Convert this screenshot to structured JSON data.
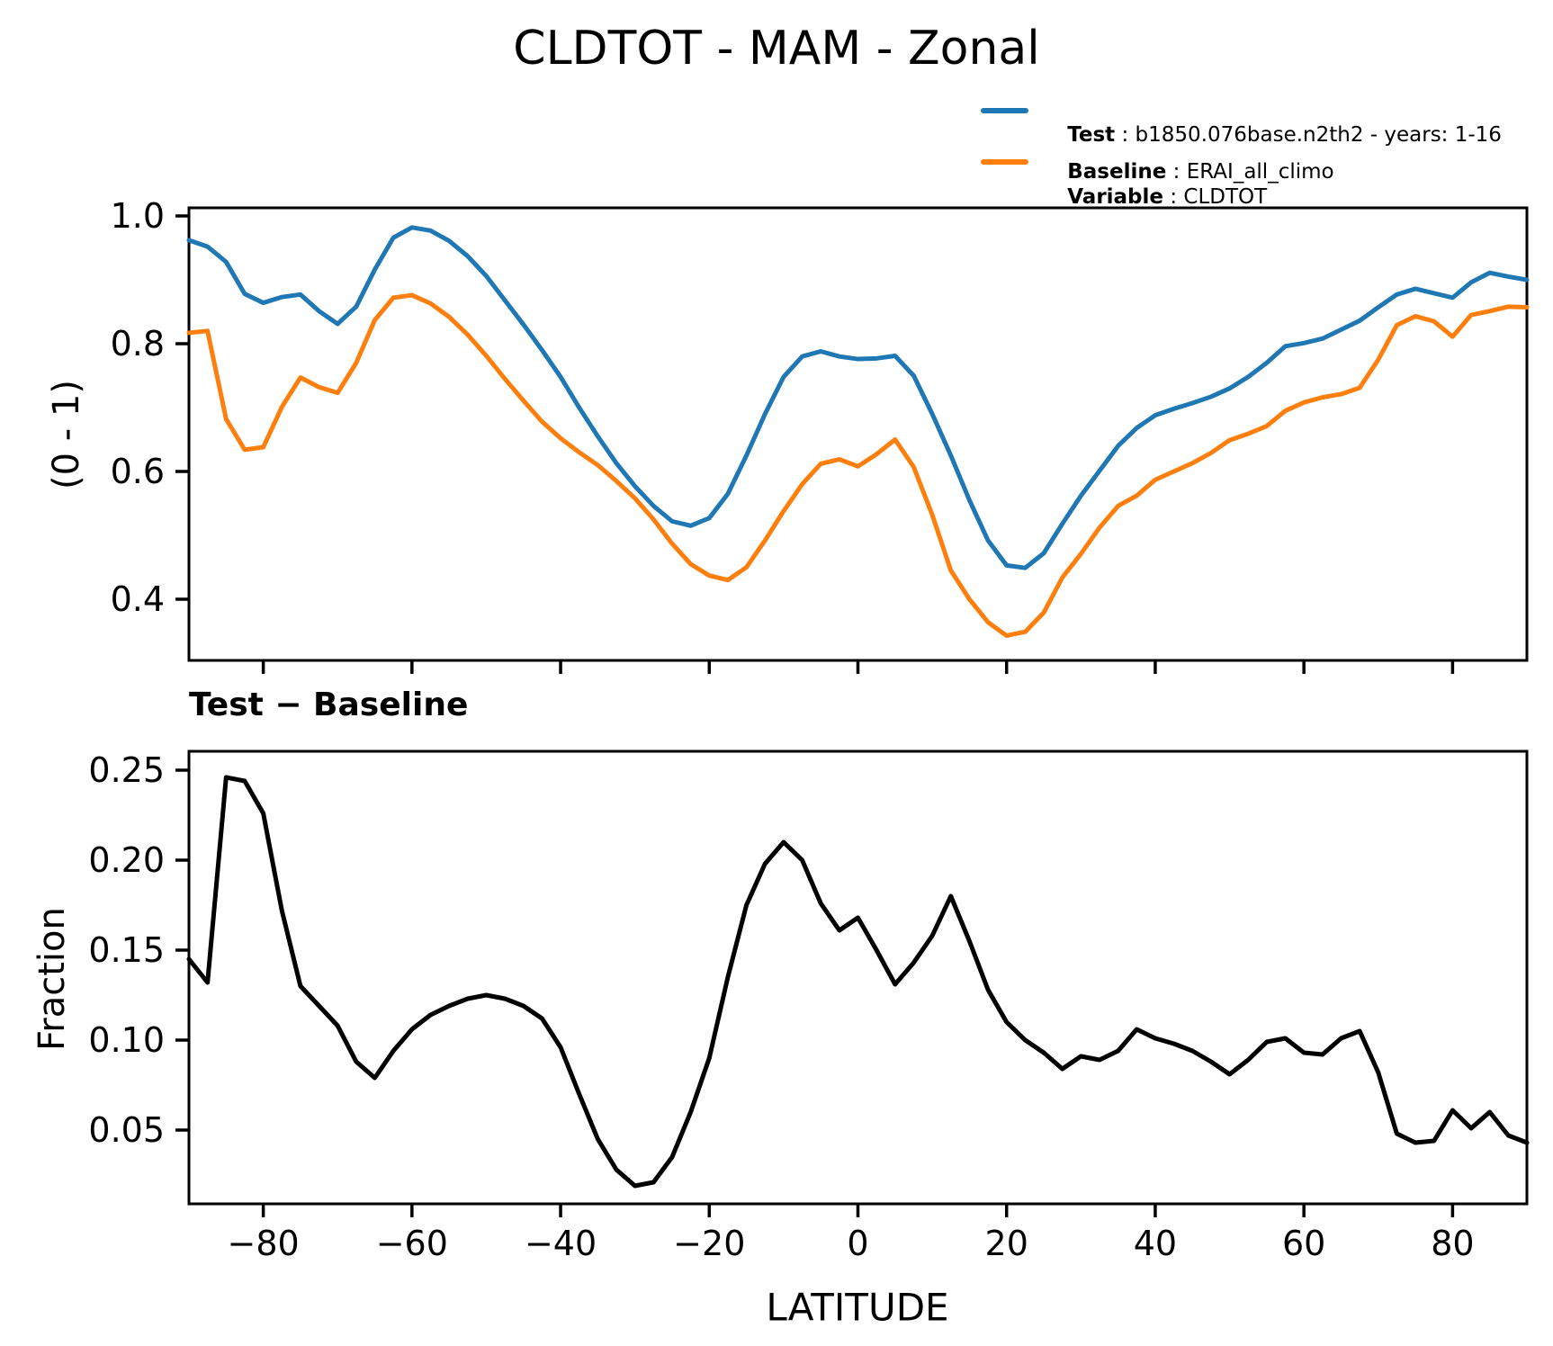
{
  "title": "CLDTOT - MAM - Zonal",
  "legend": {
    "separator": " : ",
    "test_label": "Test",
    "test_value": "b1850.076base.n2th2 - years: 1-16",
    "baseline_label": "Baseline",
    "baseline_value": "ERAI_all_climo",
    "variable_label": "Variable",
    "variable_value": "CLDTOT"
  },
  "colors": {
    "test": "#1f77b4",
    "baseline": "#ff7f0e",
    "diff": "#000000"
  },
  "chart_data": [
    {
      "type": "line",
      "title": "",
      "xlabel": "",
      "ylabel": "(0 - 1)",
      "xlim": [
        -90,
        90
      ],
      "ylim": [
        0.3,
        1.01
      ],
      "grid": false,
      "legend_position": "upper right (figure)",
      "xticks": [
        -80,
        -60,
        -40,
        -20,
        0,
        20,
        40,
        60,
        80
      ],
      "xtick_labels": [
        "−80",
        "−60",
        "−40",
        "−20",
        "0",
        "20",
        "40",
        "60",
        "80"
      ],
      "yticks": [
        1.0,
        0.8,
        0.6,
        0.4
      ],
      "ytick_labels": [
        "1.0",
        "0.8",
        "0.6",
        "0.4"
      ],
      "x": [
        -90,
        -87.5,
        -85,
        -82.5,
        -80,
        -77.5,
        -75,
        -72.5,
        -70,
        -67.5,
        -65,
        -62.5,
        -60,
        -57.5,
        -55,
        -52.5,
        -50,
        -47.5,
        -45,
        -42.5,
        -40,
        -37.5,
        -35,
        -32.5,
        -30,
        -27.5,
        -25,
        -22.5,
        -20,
        -17.5,
        -15,
        -12.5,
        -10,
        -7.5,
        -5,
        -2.5,
        0,
        2.5,
        5,
        7.5,
        10,
        12.5,
        15,
        17.5,
        20,
        22.5,
        25,
        27.5,
        30,
        32.5,
        35,
        37.5,
        40,
        42.5,
        45,
        47.5,
        50,
        52.5,
        55,
        57.5,
        60,
        62.5,
        65,
        67.5,
        70,
        72.5,
        75,
        77.5,
        80,
        82.5,
        85,
        87.5,
        90
      ],
      "series": [
        {
          "name": "Test: b1850.076base.n2th2 - years: 1-16",
          "color": "#1f77b4",
          "values": [
            0.962,
            0.952,
            0.928,
            0.878,
            0.864,
            0.873,
            0.877,
            0.851,
            0.831,
            0.858,
            0.916,
            0.966,
            0.982,
            0.977,
            0.961,
            0.937,
            0.906,
            0.868,
            0.83,
            0.79,
            0.748,
            0.7,
            0.655,
            0.613,
            0.577,
            0.546,
            0.522,
            0.515,
            0.527,
            0.565,
            0.625,
            0.69,
            0.748,
            0.78,
            0.788,
            0.78,
            0.776,
            0.777,
            0.781,
            0.75,
            0.69,
            0.625,
            0.555,
            0.492,
            0.453,
            0.449,
            0.472,
            0.518,
            0.562,
            0.601,
            0.64,
            0.668,
            0.688,
            0.698,
            0.707,
            0.717,
            0.73,
            0.748,
            0.77,
            0.796,
            0.801,
            0.808,
            0.822,
            0.836,
            0.857,
            0.877,
            0.886,
            0.879,
            0.872,
            0.896,
            0.911,
            0.905,
            0.9
          ]
        },
        {
          "name": "Baseline: ERAI_all_climo",
          "color": "#ff7f0e",
          "values": [
            0.817,
            0.82,
            0.682,
            0.634,
            0.638,
            0.701,
            0.747,
            0.732,
            0.723,
            0.77,
            0.837,
            0.872,
            0.876,
            0.863,
            0.842,
            0.814,
            0.781,
            0.745,
            0.711,
            0.678,
            0.652,
            0.63,
            0.61,
            0.585,
            0.558,
            0.525,
            0.487,
            0.455,
            0.437,
            0.43,
            0.45,
            0.492,
            0.538,
            0.58,
            0.612,
            0.619,
            0.608,
            0.627,
            0.65,
            0.607,
            0.532,
            0.445,
            0.4,
            0.364,
            0.343,
            0.349,
            0.379,
            0.434,
            0.471,
            0.512,
            0.546,
            0.562,
            0.587,
            0.6,
            0.613,
            0.629,
            0.649,
            0.659,
            0.671,
            0.695,
            0.708,
            0.716,
            0.721,
            0.731,
            0.775,
            0.829,
            0.843,
            0.835,
            0.811,
            0.845,
            0.851,
            0.858,
            0.857
          ]
        }
      ]
    },
    {
      "type": "line",
      "title": "Test − Baseline",
      "xlabel": "LATITUDE",
      "ylabel": "Fraction",
      "xlim": [
        -90,
        90
      ],
      "ylim": [
        0.01,
        0.26
      ],
      "grid": false,
      "xticks": [
        -80,
        -60,
        -40,
        -20,
        0,
        20,
        40,
        60,
        80
      ],
      "xtick_labels": [
        "−80",
        "−60",
        "−40",
        "−20",
        "0",
        "20",
        "40",
        "60",
        "80"
      ],
      "yticks": [
        0.25,
        0.2,
        0.15,
        0.1,
        0.05
      ],
      "ytick_labels": [
        "0.25",
        "0.20",
        "0.15",
        "0.10",
        "0.05"
      ],
      "x": [
        -90,
        -87.5,
        -85,
        -82.5,
        -80,
        -77.5,
        -75,
        -72.5,
        -70,
        -67.5,
        -65,
        -62.5,
        -60,
        -57.5,
        -55,
        -52.5,
        -50,
        -47.5,
        -45,
        -42.5,
        -40,
        -37.5,
        -35,
        -32.5,
        -30,
        -27.5,
        -25,
        -22.5,
        -20,
        -17.5,
        -15,
        -12.5,
        -10,
        -7.5,
        -5,
        -2.5,
        0,
        2.5,
        5,
        7.5,
        10,
        12.5,
        15,
        17.5,
        20,
        22.5,
        25,
        27.5,
        30,
        32.5,
        35,
        37.5,
        40,
        42.5,
        45,
        47.5,
        50,
        52.5,
        55,
        57.5,
        60,
        62.5,
        65,
        67.5,
        70,
        72.5,
        75,
        77.5,
        80,
        82.5,
        85,
        87.5,
        90
      ],
      "series": [
        {
          "name": "Test − Baseline",
          "color": "#000000",
          "values": [
            0.145,
            0.132,
            0.246,
            0.244,
            0.226,
            0.172,
            0.13,
            0.119,
            0.108,
            0.088,
            0.079,
            0.094,
            0.106,
            0.114,
            0.119,
            0.123,
            0.125,
            0.123,
            0.119,
            0.112,
            0.096,
            0.07,
            0.045,
            0.028,
            0.019,
            0.021,
            0.035,
            0.06,
            0.09,
            0.135,
            0.175,
            0.198,
            0.21,
            0.2,
            0.176,
            0.161,
            0.168,
            0.15,
            0.131,
            0.143,
            0.158,
            0.18,
            0.155,
            0.128,
            0.11,
            0.1,
            0.093,
            0.084,
            0.091,
            0.089,
            0.094,
            0.106,
            0.101,
            0.098,
            0.094,
            0.088,
            0.081,
            0.089,
            0.099,
            0.101,
            0.093,
            0.092,
            0.101,
            0.105,
            0.082,
            0.048,
            0.043,
            0.044,
            0.061,
            0.051,
            0.06,
            0.047,
            0.043
          ]
        }
      ]
    }
  ]
}
